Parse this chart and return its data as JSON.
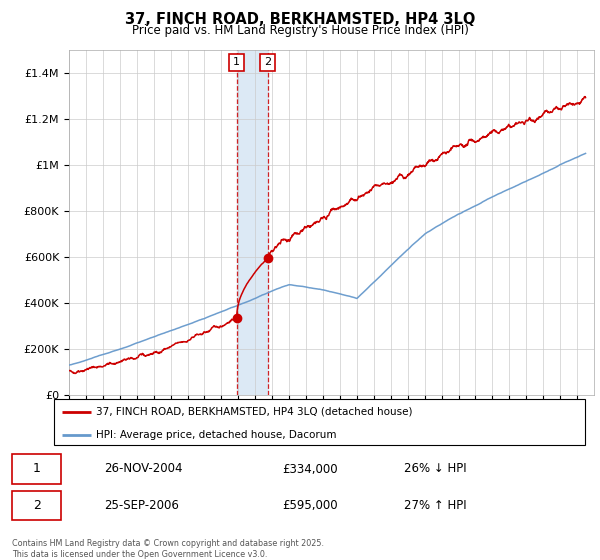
{
  "title_line1": "37, FINCH ROAD, BERKHAMSTED, HP4 3LQ",
  "title_line2": "Price paid vs. HM Land Registry's House Price Index (HPI)",
  "legend_red": "37, FINCH ROAD, BERKHAMSTED, HP4 3LQ (detached house)",
  "legend_blue": "HPI: Average price, detached house, Dacorum",
  "sale1_label": "1",
  "sale1_date": "26-NOV-2004",
  "sale1_price": "£334,000",
  "sale1_hpi": "26% ↓ HPI",
  "sale2_label": "2",
  "sale2_date": "25-SEP-2006",
  "sale2_price": "£595,000",
  "sale2_hpi": "27% ↑ HPI",
  "copyright": "Contains HM Land Registry data © Crown copyright and database right 2025.\nThis data is licensed under the Open Government Licence v3.0.",
  "xmin": 1995.0,
  "xmax": 2026.0,
  "ymin": 0,
  "ymax": 1500000,
  "sale1_x": 2004.9,
  "sale1_y": 334000,
  "sale2_x": 2006.73,
  "sale2_y": 595000,
  "shade_x1": 2004.9,
  "shade_x2": 2006.73,
  "red_color": "#cc0000",
  "blue_color": "#6699cc",
  "shade_color": "#dce9f5",
  "yticks": [
    0,
    200000,
    400000,
    600000,
    800000,
    1000000,
    1200000,
    1400000
  ],
  "ytick_labels": [
    "£0",
    "£200K",
    "£400K",
    "£600K",
    "£800K",
    "£1M",
    "£1.2M",
    "£1.4M"
  ]
}
